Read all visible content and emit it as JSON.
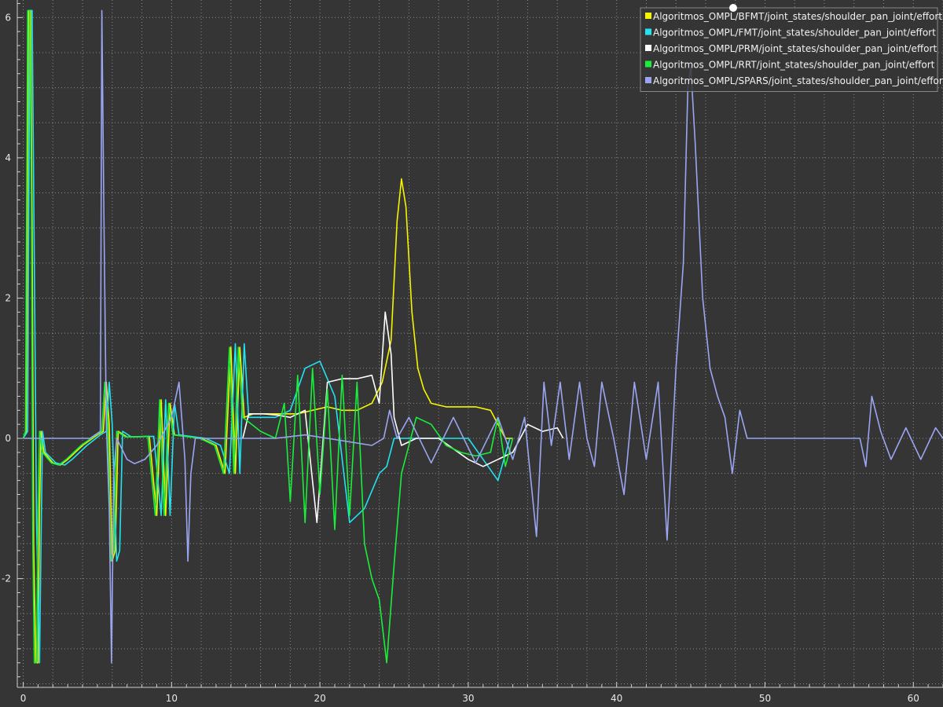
{
  "chart_data": {
    "type": "line",
    "title": "",
    "xlabel": "",
    "ylabel": "",
    "xlim": [
      -0.4,
      62
    ],
    "ylim": [
      -3.55,
      6.25
    ],
    "x_ticks": [
      0,
      10,
      20,
      30,
      40,
      50,
      60
    ],
    "y_ticks": [
      -2,
      0,
      2,
      4,
      6
    ],
    "grid": true,
    "legend_position": "top-right",
    "background": "#353535",
    "series": [
      {
        "name": "Algoritmos_OMPL/BFMT/joint_states/shoulder_pan_joint/effort",
        "color": "#f5f500",
        "points": [
          [
            0,
            0
          ],
          [
            0.2,
            0.1
          ],
          [
            0.35,
            6.1
          ],
          [
            0.5,
            6.1
          ],
          [
            0.6,
            3
          ],
          [
            0.7,
            -1.5
          ],
          [
            0.85,
            -3.2
          ],
          [
            1.0,
            -3.2
          ],
          [
            1.1,
            -1
          ],
          [
            1.2,
            0.1
          ],
          [
            1.4,
            -0.2
          ],
          [
            2.0,
            -0.35
          ],
          [
            2.5,
            -0.38
          ],
          [
            3.0,
            -0.3
          ],
          [
            4.0,
            -0.1
          ],
          [
            5.0,
            0.05
          ],
          [
            5.4,
            0.1
          ],
          [
            5.6,
            0.8
          ],
          [
            5.8,
            0.2
          ],
          [
            6.0,
            -1.75
          ],
          [
            6.2,
            -1.6
          ],
          [
            6.4,
            0.1
          ],
          [
            7.0,
            0.02
          ],
          [
            8.5,
            0.03
          ],
          [
            9.0,
            -1.1
          ],
          [
            9.3,
            0.55
          ],
          [
            9.6,
            -1.1
          ],
          [
            9.9,
            0.5
          ],
          [
            10.2,
            0.05
          ],
          [
            12.0,
            0.0
          ],
          [
            13.0,
            -0.1
          ],
          [
            13.6,
            -0.5
          ],
          [
            14.0,
            1.3
          ],
          [
            14.3,
            -0.5
          ],
          [
            14.6,
            1.3
          ],
          [
            14.9,
            0.3
          ],
          [
            15.5,
            0.35
          ],
          [
            16.5,
            0.35
          ],
          [
            17.5,
            0.35
          ],
          [
            18.5,
            0.35
          ],
          [
            19.5,
            0.4
          ],
          [
            20.5,
            0.45
          ],
          [
            21.5,
            0.4
          ],
          [
            22.5,
            0.4
          ],
          [
            23.5,
            0.5
          ],
          [
            24.2,
            0.8
          ],
          [
            24.8,
            1.4
          ],
          [
            25.2,
            3.1
          ],
          [
            25.5,
            3.7
          ],
          [
            25.8,
            3.3
          ],
          [
            26.2,
            1.8
          ],
          [
            26.6,
            1.0
          ],
          [
            27.0,
            0.7
          ],
          [
            27.5,
            0.5
          ],
          [
            28.5,
            0.45
          ],
          [
            30.5,
            0.45
          ],
          [
            31.5,
            0.4
          ],
          [
            32.0,
            0.2
          ],
          [
            32.5,
            0.0
          ],
          [
            33.0,
            0.0
          ]
        ]
      },
      {
        "name": "Algoritmos_OMPL/FMT/joint_states/shoulder_pan_joint/effort",
        "color": "#22e3f0",
        "points": [
          [
            0,
            0
          ],
          [
            0.3,
            0.1
          ],
          [
            0.45,
            6.1
          ],
          [
            0.6,
            6.1
          ],
          [
            0.75,
            2.5
          ],
          [
            0.9,
            -1.2
          ],
          [
            1.1,
            -3.2
          ],
          [
            1.2,
            -1.5
          ],
          [
            1.3,
            0.1
          ],
          [
            1.5,
            -0.2
          ],
          [
            2.2,
            -0.35
          ],
          [
            2.8,
            -0.38
          ],
          [
            3.3,
            -0.3
          ],
          [
            4.3,
            -0.1
          ],
          [
            5.2,
            0.05
          ],
          [
            5.6,
            0.1
          ],
          [
            5.8,
            0.8
          ],
          [
            6.0,
            0.2
          ],
          [
            6.3,
            -1.75
          ],
          [
            6.5,
            -1.6
          ],
          [
            6.7,
            0.1
          ],
          [
            7.3,
            0.02
          ],
          [
            8.8,
            0.03
          ],
          [
            9.3,
            -1.1
          ],
          [
            9.6,
            0.55
          ],
          [
            9.9,
            -1.1
          ],
          [
            10.2,
            0.5
          ],
          [
            10.5,
            0.05
          ],
          [
            12.3,
            0.0
          ],
          [
            13.3,
            -0.1
          ],
          [
            13.9,
            -0.5
          ],
          [
            14.3,
            1.35
          ],
          [
            14.6,
            -0.5
          ],
          [
            14.9,
            1.35
          ],
          [
            15.2,
            0.3
          ],
          [
            17.0,
            0.3
          ],
          [
            18.0,
            0.4
          ],
          [
            19.0,
            1.0
          ],
          [
            20.0,
            1.1
          ],
          [
            21.0,
            0.6
          ],
          [
            22.0,
            -1.2
          ],
          [
            23.0,
            -1.0
          ],
          [
            24.0,
            -0.5
          ],
          [
            24.5,
            -0.4
          ],
          [
            25.0,
            0.0
          ],
          [
            28.0,
            0.0
          ],
          [
            30.0,
            0.0
          ],
          [
            31.0,
            -0.3
          ],
          [
            32.0,
            -0.6
          ],
          [
            32.4,
            -0.3
          ],
          [
            32.8,
            0.0
          ]
        ]
      },
      {
        "name": "Algoritmos_OMPL/PRM/joint_states/shoulder_pan_joint/effort",
        "color": "#ffffff",
        "points": [
          [
            14.8,
            0.0
          ],
          [
            15.2,
            0.35
          ],
          [
            16.2,
            0.35
          ],
          [
            17.2,
            0.33
          ],
          [
            18.0,
            0.3
          ],
          [
            19.0,
            0.4
          ],
          [
            19.8,
            -1.2
          ],
          [
            20.5,
            0.8
          ],
          [
            21.5,
            0.85
          ],
          [
            22.5,
            0.85
          ],
          [
            23.5,
            0.9
          ],
          [
            24.0,
            0.5
          ],
          [
            24.4,
            1.8
          ],
          [
            24.8,
            1.2
          ],
          [
            25.0,
            0.3
          ],
          [
            25.5,
            -0.1
          ],
          [
            26.5,
            0.0
          ],
          [
            28.0,
            0.0
          ],
          [
            30.0,
            -0.3
          ],
          [
            31.0,
            -0.4
          ],
          [
            32.0,
            -0.3
          ],
          [
            33.0,
            -0.2
          ],
          [
            34.0,
            0.2
          ],
          [
            35.0,
            0.1
          ],
          [
            36.0,
            0.15
          ],
          [
            36.4,
            0.0
          ]
        ]
      },
      {
        "name": "Algoritmos_OMPL/RRT/joint_states/shoulder_pan_joint/effort",
        "color": "#1aee3a",
        "points": [
          [
            0,
            0
          ],
          [
            0.15,
            0.1
          ],
          [
            0.3,
            6.1
          ],
          [
            0.45,
            6.1
          ],
          [
            0.55,
            3.5
          ],
          [
            0.65,
            -1.5
          ],
          [
            0.75,
            -3.2
          ],
          [
            0.9,
            -3.2
          ],
          [
            1.0,
            -1
          ],
          [
            1.1,
            0.1
          ],
          [
            1.3,
            -0.2
          ],
          [
            1.9,
            -0.35
          ],
          [
            2.4,
            -0.38
          ],
          [
            2.9,
            -0.3
          ],
          [
            3.9,
            -0.1
          ],
          [
            4.9,
            0.05
          ],
          [
            5.3,
            0.1
          ],
          [
            5.5,
            0.8
          ],
          [
            5.7,
            0.2
          ],
          [
            5.9,
            -1.75
          ],
          [
            6.1,
            -1.6
          ],
          [
            6.3,
            0.1
          ],
          [
            6.9,
            0.02
          ],
          [
            8.4,
            0.03
          ],
          [
            8.9,
            -1.1
          ],
          [
            9.2,
            0.55
          ],
          [
            9.5,
            -1.1
          ],
          [
            9.8,
            0.5
          ],
          [
            10.1,
            0.05
          ],
          [
            11.9,
            0.0
          ],
          [
            12.9,
            -0.1
          ],
          [
            13.5,
            -0.5
          ],
          [
            13.9,
            1.3
          ],
          [
            14.2,
            -0.5
          ],
          [
            14.5,
            1.3
          ],
          [
            14.8,
            0.3
          ],
          [
            16.0,
            0.1
          ],
          [
            17.0,
            0.0
          ],
          [
            17.6,
            0.5
          ],
          [
            18.0,
            -0.9
          ],
          [
            18.5,
            0.9
          ],
          [
            19.0,
            -1.2
          ],
          [
            19.5,
            1.0
          ],
          [
            20.0,
            -0.8
          ],
          [
            20.5,
            0.7
          ],
          [
            21.0,
            -1.3
          ],
          [
            21.5,
            0.9
          ],
          [
            22.0,
            -1.1
          ],
          [
            22.5,
            0.8
          ],
          [
            23.0,
            -1.5
          ],
          [
            23.5,
            -2.0
          ],
          [
            24.0,
            -2.3
          ],
          [
            24.5,
            -3.2
          ],
          [
            25.0,
            -1.8
          ],
          [
            25.5,
            -0.5
          ],
          [
            26.5,
            0.3
          ],
          [
            27.5,
            0.2
          ],
          [
            28.5,
            -0.1
          ],
          [
            29.5,
            -0.2
          ],
          [
            30.5,
            -0.25
          ],
          [
            31.5,
            -0.2
          ],
          [
            32.0,
            0.3
          ],
          [
            32.5,
            -0.4
          ],
          [
            33.0,
            0.0
          ]
        ]
      },
      {
        "name": "Algoritmos_OMPL/SPARS/joint_states/shoulder_pan_joint/effort",
        "color": "#9aa6f2",
        "points": [
          [
            0,
            0
          ],
          [
            1.5,
            0.0
          ],
          [
            3.0,
            0.0
          ],
          [
            4.5,
            0.0
          ],
          [
            5.2,
            0.1
          ],
          [
            5.3,
            6.1
          ],
          [
            5.45,
            3.0
          ],
          [
            5.6,
            0.2
          ],
          [
            5.8,
            -1.0
          ],
          [
            5.95,
            -3.2
          ],
          [
            6.1,
            -0.5
          ],
          [
            6.3,
            0.0
          ],
          [
            7.0,
            -0.3
          ],
          [
            7.5,
            -0.36
          ],
          [
            8.2,
            -0.3
          ],
          [
            9.0,
            -0.1
          ],
          [
            10.0,
            0.3
          ],
          [
            10.5,
            0.8
          ],
          [
            10.9,
            -0.3
          ],
          [
            11.1,
            -1.75
          ],
          [
            11.3,
            -0.5
          ],
          [
            11.6,
            0.0
          ],
          [
            14.0,
            0.0
          ],
          [
            17.0,
            0.0
          ],
          [
            19.0,
            0.05
          ],
          [
            20.5,
            0.0
          ],
          [
            22.0,
            -0.05
          ],
          [
            23.5,
            -0.1
          ],
          [
            24.3,
            0.0
          ],
          [
            24.7,
            0.4
          ],
          [
            25.2,
            0.0
          ],
          [
            26.0,
            0.3
          ],
          [
            27.5,
            -0.35
          ],
          [
            29.0,
            0.3
          ],
          [
            30.5,
            -0.35
          ],
          [
            32.0,
            0.3
          ],
          [
            33.0,
            -0.3
          ],
          [
            33.8,
            0.3
          ],
          [
            34.6,
            -1.4
          ],
          [
            35.1,
            0.8
          ],
          [
            35.6,
            -0.1
          ],
          [
            36.2,
            0.8
          ],
          [
            36.8,
            -0.3
          ],
          [
            37.5,
            0.8
          ],
          [
            38.0,
            0.0
          ],
          [
            38.5,
            -0.4
          ],
          [
            39.0,
            0.8
          ],
          [
            39.8,
            0.0
          ],
          [
            40.5,
            -0.8
          ],
          [
            41.2,
            0.8
          ],
          [
            42.0,
            -0.3
          ],
          [
            42.8,
            0.8
          ],
          [
            43.4,
            -1.45
          ],
          [
            44.0,
            1.0
          ],
          [
            44.5,
            2.5
          ],
          [
            44.8,
            5.0
          ],
          [
            45.0,
            5.3
          ],
          [
            45.3,
            4.2
          ],
          [
            45.8,
            2.0
          ],
          [
            46.3,
            1.0
          ],
          [
            46.8,
            0.6
          ],
          [
            47.3,
            0.3
          ],
          [
            47.8,
            -0.5
          ],
          [
            48.3,
            0.4
          ],
          [
            48.8,
            0.0
          ],
          [
            49.5,
            0.0
          ],
          [
            52.0,
            0.0
          ],
          [
            55.0,
            0.0
          ],
          [
            56.4,
            0.0
          ],
          [
            56.8,
            -0.4
          ],
          [
            57.2,
            0.6
          ],
          [
            57.8,
            0.1
          ],
          [
            58.5,
            -0.3
          ],
          [
            59.5,
            0.15
          ],
          [
            60.5,
            -0.3
          ],
          [
            61.5,
            0.15
          ],
          [
            62.0,
            0.0
          ]
        ]
      }
    ]
  }
}
